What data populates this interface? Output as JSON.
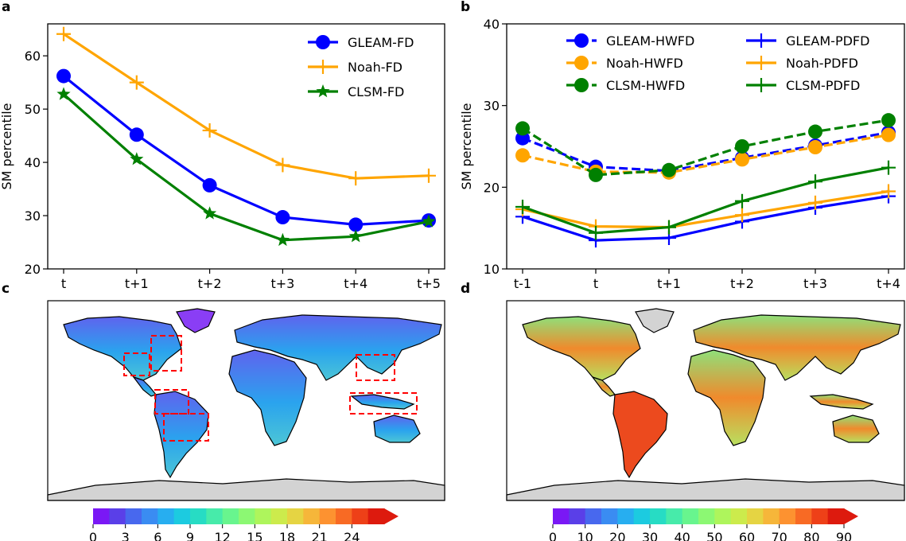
{
  "panels": {
    "a": "a",
    "b": "b",
    "c": "c",
    "d": "d"
  },
  "chart_data": [
    {
      "type": "line",
      "categories": [
        "t",
        "t+1",
        "t+2",
        "t+3",
        "t+4",
        "t+5"
      ],
      "ylabel": "SM percentile",
      "ylim": [
        20,
        66
      ],
      "yticks": [
        20,
        30,
        40,
        50,
        60
      ],
      "legend": "top-right",
      "series": [
        {
          "name": "GLEAM-FD",
          "color": "#0000ff",
          "marker": "circle",
          "dash": false,
          "values": [
            56.2,
            45.2,
            35.7,
            29.7,
            28.3,
            29.1
          ]
        },
        {
          "name": "Noah-FD",
          "color": "#ffa500",
          "marker": "plus",
          "dash": false,
          "values": [
            64.1,
            55.0,
            46.0,
            39.5,
            37.0,
            37.5
          ]
        },
        {
          "name": "CLSM-FD",
          "color": "#008000",
          "marker": "star",
          "dash": false,
          "values": [
            52.8,
            40.6,
            30.4,
            25.4,
            26.1,
            28.9
          ]
        }
      ]
    },
    {
      "type": "line",
      "categories": [
        "t-1",
        "t",
        "t+1",
        "t+2",
        "t+3",
        "t+4"
      ],
      "ylabel": "SM percentile",
      "ylim": [
        10,
        40
      ],
      "yticks": [
        10,
        20,
        30,
        40
      ],
      "legend": "top",
      "series": [
        {
          "name": "GLEAM-HWFD",
          "color": "#0000ff",
          "marker": "circle",
          "dash": true,
          "values": [
            26.0,
            22.5,
            22.0,
            23.6,
            25.1,
            26.7
          ]
        },
        {
          "name": "Noah-HWFD",
          "color": "#ffa500",
          "marker": "circle",
          "dash": true,
          "values": [
            23.9,
            21.9,
            21.8,
            23.4,
            24.9,
            26.4
          ]
        },
        {
          "name": "CLSM-HWFD",
          "color": "#008000",
          "marker": "circle",
          "dash": true,
          "values": [
            27.2,
            21.5,
            22.1,
            25.0,
            26.8,
            28.2
          ]
        },
        {
          "name": "GLEAM-PDFD",
          "color": "#0000ff",
          "marker": "plus",
          "dash": false,
          "values": [
            16.4,
            13.5,
            13.8,
            15.8,
            17.5,
            18.9
          ]
        },
        {
          "name": "Noah-PDFD",
          "color": "#ffa500",
          "marker": "plus",
          "dash": false,
          "values": [
            17.3,
            15.2,
            15.1,
            16.6,
            18.1,
            19.5
          ]
        },
        {
          "name": "CLSM-PDFD",
          "color": "#008000",
          "marker": "plus",
          "dash": false,
          "values": [
            17.6,
            14.4,
            15.1,
            18.3,
            20.7,
            22.4
          ]
        }
      ]
    },
    {
      "type": "heatmap",
      "colorbar_ticks": [
        "0",
        "3",
        "6",
        "9",
        "12",
        "15",
        "18",
        "21",
        "24"
      ],
      "colorbar_colors": [
        "#7a18f5",
        "#5a3fe8",
        "#4868ee",
        "#3a8cf2",
        "#27aef0",
        "#1ccbe0",
        "#27dcc4",
        "#47ebaa",
        "#68f58e",
        "#8cf873",
        "#aef55c",
        "#cceb4c",
        "#e5d443",
        "#f6b63a",
        "#fd9230",
        "#f86a24",
        "#ee4018",
        "#dd1a0e"
      ],
      "highlight_boxes": 7
    },
    {
      "type": "heatmap",
      "colorbar_ticks": [
        "0",
        "10",
        "20",
        "30",
        "40",
        "50",
        "60",
        "70",
        "80",
        "90"
      ],
      "colorbar_colors": [
        "#7a18f5",
        "#5a3fe8",
        "#4868ee",
        "#3a8cf2",
        "#27aef0",
        "#1ccbe0",
        "#27dcc4",
        "#47ebaa",
        "#68f58e",
        "#8cf873",
        "#aef55c",
        "#cceb4c",
        "#e5d443",
        "#f6b63a",
        "#fd9230",
        "#f86a24",
        "#ee4018",
        "#dd1a0e"
      ]
    }
  ]
}
